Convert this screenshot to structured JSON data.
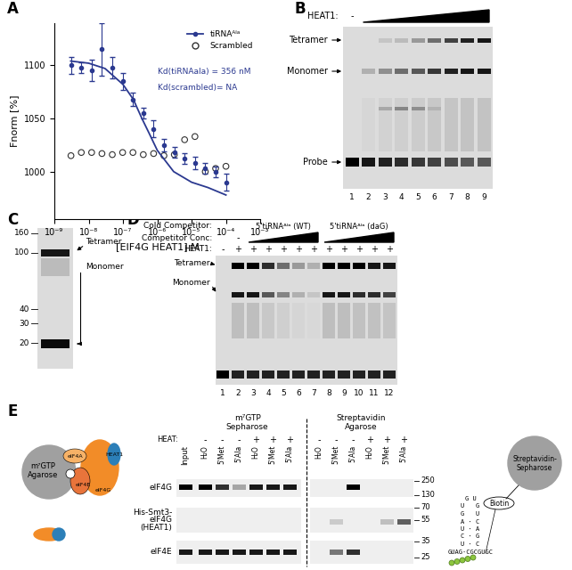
{
  "chart_data": {
    "panel": "A",
    "type": "scatter",
    "x_label": "[EIF4G HEAT1] M",
    "y_label": "Fnorm [%]",
    "log": "x",
    "xlim": [
      1e-09,
      0.001
    ],
    "xticks": [
      {
        "value": 1e-09,
        "label": "10⁻⁹"
      },
      {
        "value": 1e-08,
        "label": "10⁻⁸"
      },
      {
        "value": 1e-07,
        "label": "10⁻⁷"
      },
      {
        "value": 1e-06,
        "label": "10⁻⁶"
      },
      {
        "value": 1e-05,
        "label": "10⁻⁵"
      },
      {
        "value": 0.0001,
        "label": "10⁻⁴"
      },
      {
        "value": 0.001,
        "label": "10⁻³"
      }
    ],
    "ylim": [
      955,
      1140
    ],
    "yticks": [
      1000,
      1050,
      1100
    ],
    "legend": "upper right",
    "annotations": [
      "Kd(tiRNAala) = 356 nM",
      "Kd(scrambled)= NA"
    ],
    "x": [
      3.05e-09,
      6.1e-09,
      1.22e-08,
      2.44e-08,
      4.88e-08,
      9.77e-08,
      1.95e-07,
      3.91e-07,
      7.81e-07,
      1.56e-06,
      3.13e-06,
      6.25e-06,
      1.25e-05,
      2.5e-05,
      5e-05,
      0.0001
    ],
    "series": [
      {
        "name": "tiRNAᴬˡᵃ",
        "color": "#2b3990",
        "marker": "filled circle",
        "values": [
          1100,
          1098,
          1095,
          1115,
          1098,
          1085,
          1068,
          1055,
          1040,
          1025,
          1018,
          1012,
          1008,
          1003,
          1000,
          990
        ],
        "errors": [
          8,
          5,
          10,
          25,
          10,
          8,
          6,
          5,
          8,
          6,
          5,
          5,
          6,
          5,
          5,
          8
        ],
        "fit": {
          "x": [
            3e-09,
            1e-08,
            3e-08,
            1e-07,
            2e-07,
            3.56e-07,
            6e-07,
            1e-06,
            3e-06,
            1e-05,
            3e-05,
            0.0001
          ],
          "values": [
            1104,
            1102,
            1097,
            1082,
            1068,
            1050,
            1035,
            1020,
            1000,
            990,
            985,
            978
          ]
        }
      },
      {
        "name": "Scrambled",
        "color": "#333333",
        "marker": "open circle",
        "values": [
          1015,
          1018,
          1018,
          1017,
          1016,
          1018,
          1018,
          1016,
          1017,
          1015,
          1016,
          1030,
          1033,
          1000,
          1003,
          1005
        ]
      }
    ]
  },
  "panel_B": {
    "letter": "B",
    "row_label": "HEAT1:",
    "no_protein": "-",
    "bands": [
      "Tetramer",
      "Monomer",
      "Probe"
    ],
    "lanes": [
      1,
      2,
      3,
      4,
      5,
      6,
      7,
      8,
      9
    ]
  },
  "panel_C": {
    "letter": "C",
    "markers": [
      160,
      100,
      40,
      30,
      20
    ],
    "bands": [
      "Tetramer",
      "Monomer"
    ]
  },
  "panel_D": {
    "letter": "D",
    "row_labels": [
      "Cold Competitor:",
      "Competitor Conc:",
      "HEAT1:"
    ],
    "competitors": [
      "5'tiRNAᴬˡᵃ (WT)",
      "5'tiRNAᴬˡᵃ (daG)"
    ],
    "no_competitor": "-",
    "heat1": [
      "-",
      "+",
      "+",
      "+",
      "+",
      "+",
      "+",
      "+",
      "+",
      "+",
      "+",
      "+"
    ],
    "lanes": [
      1,
      2,
      3,
      4,
      5,
      6,
      7,
      8,
      9,
      10,
      11,
      12
    ],
    "bands": [
      "Tetramer",
      "Monomer"
    ]
  },
  "panel_E": {
    "letter": "E",
    "left_cartoon": {
      "bead": [
        "m⁷GTP",
        "Agarose"
      ],
      "proteins": [
        "eIF4G",
        "eIF4A",
        "eIF4E",
        "HEAT1"
      ]
    },
    "headers": [
      [
        "m⁷GTP",
        "Sepharose"
      ],
      [
        "Streptavidin",
        "Agarose"
      ]
    ],
    "input": "Input",
    "heat_label": "HEAT:",
    "heat": [
      "-",
      "-",
      "-",
      "+",
      "+",
      "+"
    ],
    "lane_labels": [
      "H₂O",
      "5'Met",
      "5'Ala",
      "H₂O",
      "5'Met",
      "5'Ala"
    ],
    "rows": [
      [
        "eIF4G"
      ],
      [
        "His-Smt3-",
        "eIF4G",
        "(HEAT1)"
      ],
      [
        "eIF4E"
      ]
    ],
    "markers": [
      250,
      130,
      70,
      55,
      35,
      25
    ],
    "right_cartoon": {
      "bead": [
        "Streptavidin-",
        "Sepharose"
      ],
      "tag": "Biotin",
      "rna": [
        "G U",
        "U   G",
        "G   U",
        "A · C",
        "U · A",
        "C · G",
        "U · C",
        "GUAG·CGCGUGC"
      ]
    }
  }
}
